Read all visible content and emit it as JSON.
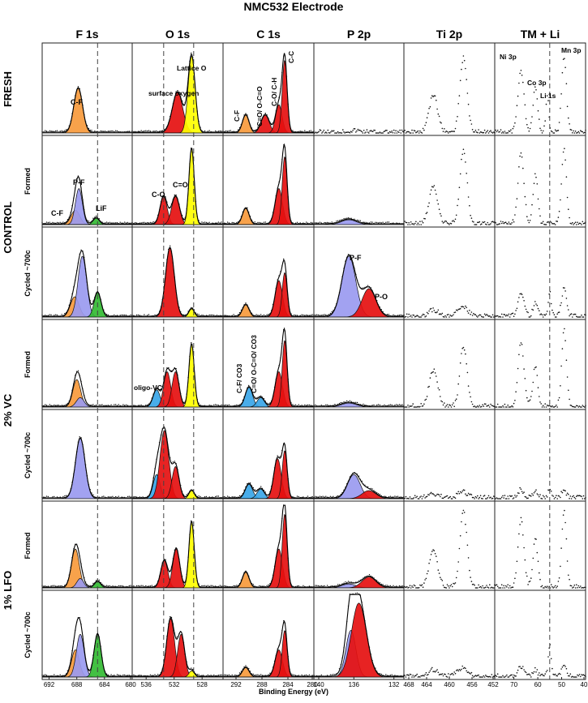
{
  "chart_data": {
    "type": "xps-stacked-spectra",
    "title": "NMC532 Electrode",
    "xlabel": "Binding Energy (eV)",
    "regions": [
      {
        "name": "F 1s",
        "ticks": [
          "692",
          "688",
          "684",
          "680"
        ],
        "range": [
          693,
          680
        ]
      },
      {
        "name": "O 1s",
        "ticks": [
          "536",
          "532",
          "528"
        ],
        "range": [
          538,
          525
        ]
      },
      {
        "name": "C 1s",
        "ticks": [
          "292",
          "288",
          "284",
          "280"
        ],
        "range": [
          294,
          280
        ]
      },
      {
        "name": "P 2p",
        "ticks": [
          "140",
          "136",
          "132"
        ],
        "range": [
          140,
          131
        ]
      },
      {
        "name": "Ti 2p",
        "ticks": [
          "468",
          "464",
          "460",
          "456",
          "452"
        ],
        "range": [
          468,
          452
        ]
      },
      {
        "name": "TM + Li",
        "ticks": [
          "70",
          "60",
          "50",
          "40"
        ],
        "range": [
          78,
          40
        ]
      }
    ],
    "groups": [
      {
        "name": "FRESH",
        "rows": [
          ""
        ]
      },
      {
        "name": "CONTROL",
        "rows": [
          "Formed",
          "Cycled ~700c"
        ]
      },
      {
        "name": "2% VC",
        "rows": [
          "Formed",
          "Cycled ~700c"
        ]
      },
      {
        "name": "1% LFO",
        "rows": [
          "Formed",
          "Cycled ~700c"
        ]
      }
    ],
    "component_colors": {
      "C-F": "#f79a3c",
      "P-F / LiF-adjacent": "#9a9af0",
      "LiF": "#33bb33",
      "O / C-O / P-O": "#e51010",
      "Lattice O": "#ffff00",
      "Oligo-VC / CO3": "#3aa6e8"
    },
    "dashed_reference_energies": {
      "F 1s": 685,
      "O 1s": [
        533.5,
        529.2
      ],
      "TM + Li": 55
    },
    "annotations": {
      "f1s_cf": "C-F",
      "f1s_pf": "P-F",
      "f1s_cf2": "C-F",
      "f1s_lif": "LiF",
      "o1s_surface": "surface oxygen",
      "o1s_lattice": "Lattice O",
      "o1s_co": "C-O",
      "o1s_c_o": "C=O",
      "o1s_oligo": "oligo-VC",
      "c1s_cf": "C-F",
      "c1s_co_oco": "C=O/ O-C=O",
      "c1s_coch": "C-O/ C-H",
      "c1s_cc": "C-C",
      "c1s_cf_co3": "C-F/ CO3",
      "c1s_co_oco_co3": "C=O/ O-C=O/ CO3",
      "p2p_pf": "P-F",
      "p2p_po": "P-O",
      "tm_ni": "Ni 3p",
      "tm_co": "Co 3p",
      "tm_li": "Li 1s",
      "tm_mn": "Mn 3p"
    },
    "series": [
      {
        "name": "FRESH",
        "F 1s": {
          "C-F": [
            687.8,
            1.0,
            0.55
          ]
        },
        "O 1s": {
          "surface": [
            531.5,
            1.2,
            0.5
          ],
          "Lattice O": [
            529.5,
            0.8,
            0.95
          ]
        },
        "C 1s": {
          "C-F": [
            290.5,
            0.8,
            0.22
          ],
          "C=O": [
            287.5,
            1.0,
            0.22
          ],
          "C-O/C-H": [
            285.4,
            0.8,
            0.35
          ],
          "C-C": [
            284.5,
            0.6,
            0.9
          ]
        },
        "P 2p": {}
      },
      {
        "name": "CONTROL Formed",
        "F 1s": {
          "C-F": [
            688.2,
            1.0,
            0.18
          ],
          "P-F": [
            687.7,
            0.8,
            0.45
          ],
          "LiF": [
            685.2,
            0.7,
            0.08
          ]
        },
        "O 1s": {
          "C-O": [
            533.5,
            0.8,
            0.35
          ],
          "C=O": [
            531.8,
            0.9,
            0.35
          ],
          "Lattice O": [
            529.5,
            0.6,
            0.95
          ]
        },
        "C 1s": {
          "C-F": [
            290.5,
            0.8,
            0.2
          ],
          "C-O/C-H": [
            285.4,
            0.9,
            0.45
          ],
          "C-C": [
            284.5,
            0.6,
            0.85
          ]
        },
        "P 2p": {
          "P-F": [
            136.5,
            1.2,
            0.06
          ]
        }
      },
      {
        "name": "CONTROL Cycled ~700c",
        "F 1s": {
          "C-F": [
            688.3,
            1.0,
            0.25
          ],
          "P-F": [
            687.2,
            1.0,
            0.75
          ],
          "LiF": [
            685.0,
            0.8,
            0.3
          ]
        },
        "O 1s": {
          "O": [
            532.6,
            1.0,
            0.85
          ],
          "Lattice O": [
            529.5,
            0.6,
            0.1
          ]
        },
        "C 1s": {
          "C-F": [
            290.5,
            0.8,
            0.15
          ],
          "C-O/C-H": [
            285.4,
            0.9,
            0.45
          ],
          "C-C": [
            284.5,
            0.6,
            0.55
          ]
        },
        "P 2p": {
          "P-F": [
            136.5,
            1.1,
            0.75
          ],
          "P-O": [
            134.5,
            1.1,
            0.35
          ]
        }
      },
      {
        "name": "2% VC Formed",
        "F 1s": {
          "C-F": [
            688.0,
            0.9,
            0.35
          ],
          "P-F": [
            687.5,
            0.9,
            0.12
          ]
        },
        "O 1s": {
          "oligo-VC": [
            534.5,
            0.8,
            0.22
          ],
          "C-O": [
            533.0,
            0.8,
            0.45
          ],
          "C=O": [
            531.8,
            0.8,
            0.45
          ],
          "Lattice O": [
            529.5,
            0.6,
            0.8
          ]
        },
        "C 1s": {
          "CO3": [
            290.0,
            0.9,
            0.25
          ],
          "C=O/O-C=O": [
            288.2,
            0.9,
            0.12
          ],
          "C-O/C-H": [
            285.4,
            0.9,
            0.45
          ],
          "C-C": [
            284.5,
            0.6,
            0.85
          ]
        },
        "P 2p": {
          "P-F": [
            136.5,
            1.2,
            0.05
          ]
        }
      },
      {
        "name": "2% VC Cycled ~700c",
        "F 1s": {
          "P-F": [
            687.5,
            1.1,
            0.75
          ]
        },
        "O 1s": {
          "oligo-VC": [
            534.5,
            0.8,
            0.3
          ],
          "O": [
            533.4,
            1.0,
            0.85
          ],
          "C=O": [
            531.8,
            0.8,
            0.4
          ],
          "Lattice O": [
            529.5,
            0.6,
            0.1
          ]
        },
        "C 1s": {
          "CO3": [
            290.0,
            0.9,
            0.18
          ],
          "C=O/O-C=O": [
            288.2,
            0.9,
            0.12
          ],
          "C-O/C-H": [
            285.6,
            0.9,
            0.5
          ],
          "C-C": [
            284.5,
            0.6,
            0.6
          ]
        },
        "P 2p": {
          "P-F": [
            136.0,
            1.0,
            0.3
          ],
          "P-O": [
            134.5,
            1.1,
            0.1
          ]
        }
      },
      {
        "name": "1% LFO Formed",
        "F 1s": {
          "C-F": [
            688.2,
            0.9,
            0.5
          ],
          "P-F": [
            687.5,
            0.8,
            0.12
          ],
          "LiF": [
            685.0,
            0.7,
            0.08
          ]
        },
        "O 1s": {
          "C-O": [
            533.4,
            0.8,
            0.35
          ],
          "C=O": [
            531.7,
            0.8,
            0.5
          ],
          "Lattice O": [
            529.5,
            0.6,
            0.85
          ]
        },
        "C 1s": {
          "C-F": [
            290.5,
            0.8,
            0.2
          ],
          "C-O/C-H": [
            285.4,
            0.9,
            0.5
          ],
          "C-C": [
            284.5,
            0.6,
            0.95
          ]
        },
        "P 2p": {
          "P-F": [
            136.5,
            1.1,
            0.05
          ],
          "P-O": [
            134.5,
            1.1,
            0.14
          ]
        }
      },
      {
        "name": "1% LFO Cycled ~700c",
        "F 1s": {
          "C-F": [
            688.2,
            0.9,
            0.35
          ],
          "P-F": [
            687.5,
            0.9,
            0.55
          ],
          "LiF": [
            685.0,
            0.8,
            0.55
          ]
        },
        "O 1s": {
          "O": [
            532.5,
            0.9,
            0.75
          ],
          "C=O": [
            531.0,
            0.8,
            0.55
          ],
          "Lattice O": [
            529.5,
            0.6,
            0.08
          ]
        },
        "C 1s": {
          "C-F": [
            290.5,
            0.8,
            0.12
          ],
          "C-O/C-H": [
            285.4,
            0.9,
            0.35
          ],
          "C-C": [
            284.5,
            0.6,
            0.6
          ]
        },
        "P 2p": {
          "P-F": [
            136.3,
            0.8,
            0.6
          ],
          "P-O": [
            135.5,
            1.2,
            0.95
          ]
        }
      }
    ],
    "notes": "Peak component values are [binding energy (eV), FWHM-like width (eV), relative intensity 0-1] estimated from the figure; Ti 2p and TM + Li panels are raw data dots only."
  }
}
